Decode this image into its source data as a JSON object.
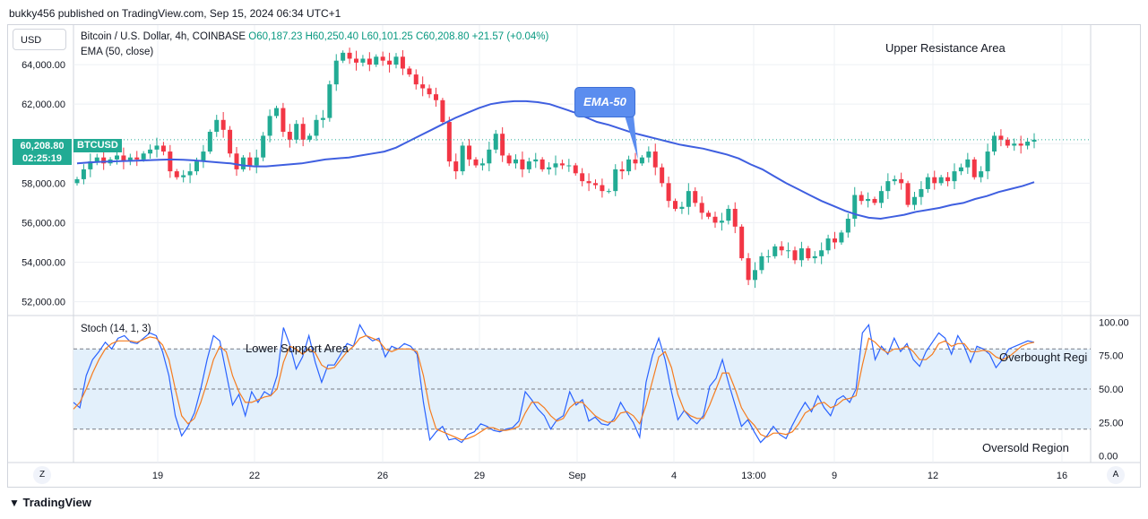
{
  "header": {
    "publisher_line": "bukky456 published on TradingView.com, Sep 15, 2024 06:34 UTC+1"
  },
  "toolbar": {
    "currency": "USD"
  },
  "legend": {
    "symbol": "Bitcoin / U.S. Dollar, 4h, COINBASE",
    "ohlc": "O60,187.23 H60,250.40 L60,101.25 C60,208.80 +21.57 (+0.04%)",
    "indicator": "EMA (50, close)"
  },
  "price_tag": {
    "price": "60,208.80",
    "countdown": "02:25:19",
    "symbol": "BTCUSD"
  },
  "annotations": {
    "upper_resistance": "Upper Resistance Area",
    "lower_support": "Lower Support Area",
    "ema_callout": "EMA-50",
    "overbought": "Overbought Regi",
    "oversold": "Oversold Region"
  },
  "stoch_panel": {
    "label": "Stoch (14, 1, 3)"
  },
  "footer": {
    "brand": "TradingView"
  },
  "buttons": {
    "left": "Z",
    "right": "A"
  },
  "colors": {
    "up": "#22ab94",
    "down": "#f23645",
    "ema": "#3f5fe0",
    "stoch_k": "#2962ff",
    "stoch_d": "#f57c1f",
    "band": "#e3f0fb",
    "last_line": "#22ab94"
  },
  "chart_data": [
    {
      "type": "candlestick",
      "title": "Bitcoin / U.S. Dollar, 4h, COINBASE",
      "x_ticks": [
        "19",
        "22",
        "26",
        "29",
        "Sep",
        "4",
        "13:00",
        "9",
        "12",
        "16"
      ],
      "y_ticks": [
        52000,
        54000,
        56000,
        58000,
        60000,
        62000,
        64000
      ],
      "y_tick_labels": [
        "52,000.00",
        "54,000.00",
        "56,000.00",
        "58,000.00",
        "60,000.00",
        "62,000.00",
        "64,000.00"
      ],
      "ylim": [
        51300,
        66000
      ],
      "close_series": [
        58200,
        58700,
        59100,
        59300,
        59000,
        59200,
        59400,
        59100,
        59300,
        59200,
        59500,
        59700,
        59900,
        59600,
        58600,
        58300,
        58400,
        58600,
        59100,
        59600,
        60600,
        61200,
        60700,
        59500,
        58700,
        59300,
        58900,
        59300,
        60400,
        61400,
        61800,
        60600,
        60200,
        61000,
        60200,
        60400,
        61200,
        61300,
        63000,
        64200,
        64600,
        64300,
        64100,
        64300,
        64000,
        64400,
        64200,
        64000,
        64400,
        63800,
        63500,
        63000,
        62800,
        62500,
        62200,
        61100,
        59100,
        58600,
        59900,
        59200,
        58900,
        59000,
        59700,
        60500,
        59400,
        59000,
        59200,
        58700,
        59100,
        59200,
        58700,
        58800,
        59000,
        58900,
        58900,
        58500,
        58100,
        58000,
        57900,
        57600,
        57600,
        58700,
        58600,
        59200,
        59000,
        59300,
        59600,
        58800,
        58000,
        57100,
        56700,
        56800,
        57600,
        57000,
        56500,
        56300,
        56000,
        56100,
        56700,
        55800,
        54200,
        53100,
        53600,
        54300,
        54300,
        54800,
        54600,
        54600,
        54100,
        54700,
        54200,
        54300,
        54600,
        55200,
        55000,
        55500,
        56200,
        57400,
        57100,
        57200,
        57000,
        57600,
        58100,
        58200,
        58000,
        56900,
        57300,
        57700,
        58300,
        58000,
        58300,
        58100,
        58600,
        58800,
        59200,
        58300,
        58600,
        59600,
        60400,
        60200,
        59900,
        60000,
        59900,
        60100,
        60200
      ],
      "ema50": [
        59000,
        59050,
        59080,
        59100,
        59120,
        59140,
        59160,
        59180,
        59200,
        59180,
        59150,
        59100,
        59050,
        59000,
        58900,
        58850,
        58850,
        58900,
        58950,
        59000,
        59100,
        59200,
        59250,
        59300,
        59400,
        59500,
        59600,
        59800,
        60100,
        60400,
        60700,
        61000,
        61300,
        61550,
        61800,
        62000,
        62100,
        62150,
        62150,
        62100,
        62000,
        61800,
        61600,
        61350,
        61100,
        60950,
        60750,
        60550,
        60400,
        60250,
        60100,
        59950,
        59850,
        59750,
        59600,
        59450,
        59250,
        58950,
        58700,
        58350,
        58000,
        57700,
        57400,
        57100,
        56850,
        56600,
        56400,
        56250,
        56200,
        56300,
        56400,
        56550,
        56650,
        56750,
        56900,
        57000,
        57200,
        57350,
        57550,
        57700,
        57850,
        58050
      ],
      "series": [
        {
          "name": "EMA (50, close)"
        }
      ]
    },
    {
      "type": "line",
      "title": "Stoch (14, 1, 3)",
      "y_ticks": [
        0,
        25,
        50,
        75,
        100
      ],
      "y_tick_labels": [
        "0.00",
        "25.00",
        "50.00",
        "75.00",
        "100.00"
      ],
      "ylim": [
        -5,
        105
      ],
      "band": [
        20,
        80
      ],
      "series": [
        {
          "values": [
            40,
            36,
            60,
            72,
            78,
            85,
            80,
            88,
            90,
            85,
            84,
            88,
            92,
            90,
            78,
            60,
            30,
            15,
            22,
            32,
            50,
            72,
            90,
            86,
            62,
            38,
            46,
            30,
            48,
            40,
            48,
            45,
            60,
            96,
            83,
            65,
            74,
            90,
            70,
            55,
            68,
            68,
            76,
            84,
            82,
            98,
            90,
            86,
            88,
            74,
            82,
            80,
            84,
            82,
            76,
            40,
            12,
            18,
            22,
            12,
            13,
            10,
            16,
            18,
            24,
            22,
            19,
            18,
            20,
            21,
            26,
            48,
            42,
            35,
            30,
            20,
            27,
            30,
            48,
            38,
            42,
            26,
            29,
            24,
            23,
            28,
            40,
            32,
            25,
            14,
            55,
            75,
            88,
            72,
            48,
            27,
            34,
            28,
            24,
            30,
            52,
            58,
            72,
            54,
            38,
            22,
            27,
            18,
            10,
            15,
            22,
            16,
            13,
            23,
            32,
            40,
            33,
            45,
            36,
            30,
            42,
            45,
            40,
            50,
            92,
            98,
            72,
            82,
            76,
            88,
            78,
            84,
            72,
            67,
            78,
            85,
            92,
            88,
            76,
            90,
            82,
            70,
            82,
            80,
            76,
            66,
            72,
            80,
            82,
            84,
            86,
            85
          ],
          "name": ""
        },
        {
          "values": [
            35,
            40,
            50,
            62,
            72,
            80,
            84,
            86,
            86,
            86,
            85,
            87,
            89,
            88,
            83,
            72,
            50,
            30,
            24,
            28,
            40,
            55,
            72,
            82,
            78,
            60,
            48,
            40,
            40,
            42,
            44,
            45,
            50,
            70,
            82,
            80,
            76,
            80,
            77,
            68,
            65,
            66,
            72,
            78,
            82,
            88,
            90,
            88,
            86,
            80,
            78,
            80,
            80,
            80,
            78,
            60,
            35,
            20,
            18,
            16,
            14,
            12,
            13,
            15,
            18,
            21,
            21,
            19,
            19,
            20,
            22,
            32,
            40,
            40,
            36,
            30,
            26,
            28,
            36,
            40,
            40,
            35,
            30,
            27,
            25,
            26,
            32,
            33,
            30,
            24,
            38,
            56,
            74,
            78,
            66,
            46,
            34,
            30,
            28,
            28,
            38,
            50,
            62,
            62,
            50,
            36,
            28,
            23,
            16,
            14,
            17,
            17,
            16,
            18,
            24,
            32,
            35,
            39,
            40,
            36,
            38,
            42,
            43,
            45,
            68,
            88,
            85,
            80,
            77,
            80,
            80,
            82,
            78,
            72,
            72,
            76,
            84,
            86,
            82,
            84,
            84,
            78,
            78,
            79,
            78,
            74,
            72,
            74,
            78,
            82,
            84,
            85
          ],
          "name": ""
        }
      ]
    }
  ]
}
